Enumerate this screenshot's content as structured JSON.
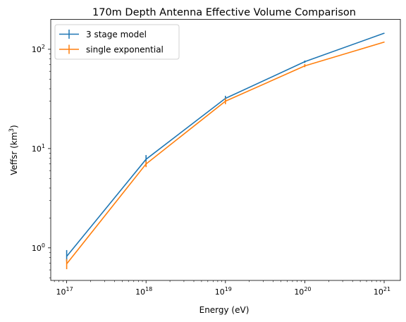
{
  "chart_data": {
    "type": "line",
    "title": "170m Depth Antenna Effective Volume Comparison",
    "xlabel": "Energy (eV)",
    "ylabel": "Veffsr (km",
    "ylabel_sup": "3",
    "ylabel_close": ")",
    "x_scale": "log",
    "y_scale": "log",
    "xlim": [
      6.3e+16,
      1.6e+21
    ],
    "ylim": [
      0.47,
      200
    ],
    "grid": false,
    "legend_position": "top-left",
    "x_ticks": [
      {
        "value": 1e+17,
        "base": "10",
        "exp": "17"
      },
      {
        "value": 1e+18,
        "base": "10",
        "exp": "18"
      },
      {
        "value": 1e+19,
        "base": "10",
        "exp": "19"
      },
      {
        "value": 1e+20,
        "base": "10",
        "exp": "20"
      },
      {
        "value": 1e+21,
        "base": "10",
        "exp": "21"
      }
    ],
    "y_ticks": [
      {
        "value": 1,
        "base": "10",
        "exp": "0"
      },
      {
        "value": 10,
        "base": "10",
        "exp": "1"
      },
      {
        "value": 100,
        "base": "10",
        "exp": "2"
      }
    ],
    "series": [
      {
        "name": "3 stage model",
        "color": "#1f77b4",
        "points": [
          {
            "x": 1e+17,
            "y": 0.82,
            "ylo": 0.73,
            "yhi": 0.95
          },
          {
            "x": 1e+18,
            "y": 7.8,
            "ylo": 7.1,
            "yhi": 8.6
          },
          {
            "x": 1e+19,
            "y": 32.0,
            "ylo": 30.5,
            "yhi": 34.0
          },
          {
            "x": 1e+20,
            "y": 75.0,
            "ylo": 73.0,
            "yhi": 77.0
          },
          {
            "x": 1e+21,
            "y": 145.0,
            "ylo": 144.0,
            "yhi": 146.0
          }
        ]
      },
      {
        "name": "single exponential",
        "color": "#ff7f0e",
        "points": [
          {
            "x": 1e+17,
            "y": 0.69,
            "ylo": 0.61,
            "yhi": 0.77
          },
          {
            "x": 1e+18,
            "y": 7.0,
            "ylo": 6.5,
            "yhi": 7.5
          },
          {
            "x": 1e+19,
            "y": 30.0,
            "ylo": 28.0,
            "yhi": 32.0
          },
          {
            "x": 1e+20,
            "y": 68.0,
            "ylo": 66.0,
            "yhi": 71.0
          },
          {
            "x": 1e+21,
            "y": 118.0,
            "ylo": 117.0,
            "yhi": 119.0
          }
        ]
      }
    ]
  }
}
